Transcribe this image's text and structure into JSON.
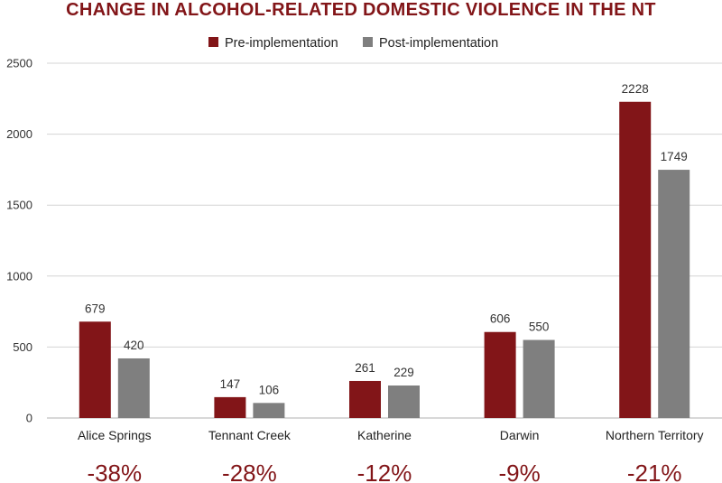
{
  "colors": {
    "pre": "#821518",
    "post": "#7f7f7f",
    "title": "#821518",
    "change": "#821518",
    "gridline": "#d4d4d4",
    "axis": "#b0b0b0"
  },
  "chart_data": {
    "type": "bar",
    "title": "CHANGE IN ALCOHOL-RELATED DOMESTIC VIOLENCE IN THE NT",
    "xlabel": "",
    "ylabel": "",
    "ylim": [
      0,
      2500
    ],
    "yticks": [
      "0",
      "500",
      "1000",
      "1500",
      "2000",
      "2500"
    ],
    "ytick_values": [
      0,
      500,
      1000,
      1500,
      2000,
      2500
    ],
    "grid": true,
    "legend_position": "top-center",
    "categories": [
      "Alice Springs",
      "Tennant Creek",
      "Katherine",
      "Darwin",
      "Northern Territory"
    ],
    "series": [
      {
        "name": "Pre-implementation",
        "values": [
          679,
          147,
          261,
          606,
          2228
        ],
        "labels": [
          "679",
          "147",
          "261",
          "606",
          "2228"
        ]
      },
      {
        "name": "Post-implementation",
        "values": [
          420,
          106,
          229,
          550,
          1749
        ],
        "labels": [
          "420",
          "106",
          "229",
          "550",
          "1749"
        ]
      }
    ],
    "change_labels": [
      "-38%",
      "-28%",
      "-12%",
      "-9%",
      "-21%"
    ]
  }
}
